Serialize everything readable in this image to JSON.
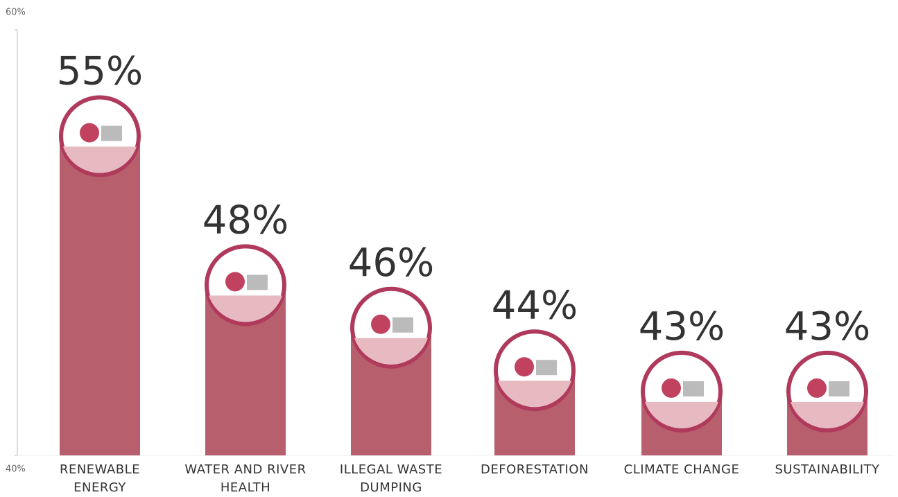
{
  "chart_data": {
    "type": "bar",
    "categories": [
      "RENEWABLE ENERGY",
      "WATER AND RIVER HEALTH",
      "ILLEGAL WASTE DUMPING",
      "DEFORESTATION",
      "CLIMATE CHANGE",
      "SUSTAINABILITY"
    ],
    "values": [
      55,
      48,
      46,
      44,
      43,
      43
    ],
    "value_labels": [
      "55%",
      "48%",
      "46%",
      "44%",
      "43%",
      "43%"
    ],
    "color": "#b85f6e",
    "ylim": [
      40,
      60
    ],
    "yticks": [
      {
        "value": 40,
        "label": "40%"
      },
      {
        "value": 60,
        "label": "60%"
      }
    ]
  }
}
